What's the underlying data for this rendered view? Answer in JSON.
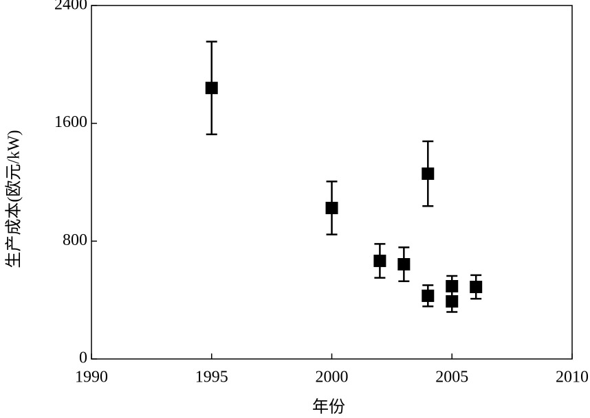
{
  "chart_data": {
    "type": "errorbar",
    "xlabel": "年份",
    "ylabel": "生产成本(欧元/kW)",
    "x": [
      1995,
      2000,
      2002,
      2003,
      2004,
      2004,
      2005,
      2005,
      2006
    ],
    "values": [
      1840,
      1025,
      666,
      643,
      1258,
      429,
      494,
      391,
      489
    ],
    "errors": [
      315,
      180,
      115,
      115,
      220,
      72,
      70,
      72,
      80
    ],
    "color": "#000000",
    "xlim": [
      1990,
      2010
    ],
    "xticks": [
      1990,
      1995,
      2000,
      2005,
      2010
    ],
    "ylim": [
      0,
      2400
    ],
    "yticks": [
      0,
      800,
      1600,
      2400
    ]
  }
}
